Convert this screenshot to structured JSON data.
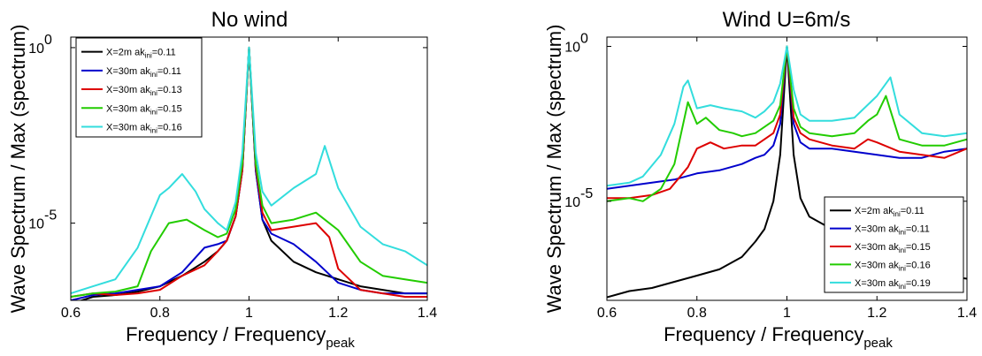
{
  "chart_data": [
    {
      "type": "line",
      "title": "No wind",
      "xlabel": "Frequency / Frequency",
      "xlabel_sub": "peak",
      "ylabel": "Wave Spectrum  / Max (spectrum)",
      "xlim": [
        0.6,
        1.4
      ],
      "ylim_log10": [
        -7.2,
        0.3
      ],
      "yscale": "log",
      "x_ticks": [
        "0.6",
        "0.8",
        "1",
        "1.2",
        "1.4"
      ],
      "y_ticks": [
        {
          "base": "10",
          "exp": "0",
          "value": 0
        },
        {
          "base": "10",
          "exp": "-5",
          "value": -5
        }
      ],
      "grid": false,
      "legend_position": "top-left",
      "legend_label_ak": "ak",
      "legend_label_sub": "ini",
      "series": [
        {
          "name_prefix": "X=2m ",
          "name_suffix": "=0.11",
          "color": "#000000",
          "x": [
            0.6,
            0.65,
            0.7,
            0.75,
            0.8,
            0.85,
            0.9,
            0.93,
            0.95,
            0.97,
            0.985,
            1.0,
            1.015,
            1.03,
            1.05,
            1.1,
            1.15,
            1.2,
            1.25,
            1.3,
            1.35,
            1.4
          ],
          "y_log10": [
            -7.3,
            -7.1,
            -7.05,
            -6.95,
            -6.8,
            -6.5,
            -6.1,
            -5.8,
            -5.5,
            -4.8,
            -3.5,
            0,
            -3.5,
            -4.9,
            -5.5,
            -6.1,
            -6.4,
            -6.6,
            -6.8,
            -6.9,
            -7.0,
            -7.0
          ]
        },
        {
          "name_prefix": "X=30m ",
          "name_suffix": "=0.11",
          "color": "#0000cc",
          "x": [
            0.6,
            0.65,
            0.7,
            0.75,
            0.8,
            0.85,
            0.9,
            0.93,
            0.95,
            0.97,
            0.985,
            1.0,
            1.015,
            1.03,
            1.05,
            1.1,
            1.15,
            1.2,
            1.25,
            1.3,
            1.35,
            1.4
          ],
          "y_log10": [
            -7.2,
            -7.05,
            -7.0,
            -6.9,
            -6.8,
            -6.4,
            -5.7,
            -5.6,
            -5.5,
            -4.8,
            -3.5,
            0,
            -3.5,
            -4.9,
            -5.3,
            -5.6,
            -6.1,
            -6.7,
            -6.9,
            -7.0,
            -7.0,
            -7.0
          ]
        },
        {
          "name_prefix": "X=30m ",
          "name_suffix": "=0.13",
          "color": "#dd0000",
          "x": [
            0.6,
            0.65,
            0.7,
            0.75,
            0.8,
            0.85,
            0.9,
            0.93,
            0.95,
            0.97,
            0.985,
            1.0,
            1.015,
            1.03,
            1.05,
            1.1,
            1.15,
            1.18,
            1.2,
            1.25,
            1.3,
            1.35,
            1.4
          ],
          "y_log10": [
            -7.1,
            -7.0,
            -7.05,
            -7.0,
            -6.9,
            -6.5,
            -6.2,
            -5.8,
            -5.5,
            -4.8,
            -3.5,
            0,
            -3.4,
            -4.7,
            -5.2,
            -5.1,
            -5.0,
            -5.4,
            -6.3,
            -6.9,
            -7.0,
            -7.1,
            -7.1
          ]
        },
        {
          "name_prefix": "X=30m ",
          "name_suffix": "=0.15",
          "color": "#22cc00",
          "x": [
            0.6,
            0.65,
            0.7,
            0.75,
            0.78,
            0.82,
            0.86,
            0.9,
            0.93,
            0.95,
            0.97,
            0.985,
            1.0,
            1.015,
            1.03,
            1.05,
            1.1,
            1.15,
            1.2,
            1.25,
            1.3,
            1.35,
            1.4
          ],
          "y_log10": [
            -7.1,
            -7.0,
            -6.95,
            -6.8,
            -5.8,
            -5.0,
            -4.9,
            -5.2,
            -5.4,
            -5.3,
            -4.6,
            -3.3,
            0,
            -3.3,
            -4.5,
            -5.0,
            -4.9,
            -4.7,
            -5.2,
            -6.1,
            -6.5,
            -6.6,
            -6.7
          ]
        },
        {
          "name_prefix": "X=30m ",
          "name_suffix": "=0.16",
          "color": "#33dddd",
          "x": [
            0.6,
            0.65,
            0.7,
            0.75,
            0.78,
            0.8,
            0.82,
            0.85,
            0.88,
            0.9,
            0.93,
            0.95,
            0.97,
            0.985,
            1.0,
            1.015,
            1.03,
            1.05,
            1.1,
            1.15,
            1.17,
            1.2,
            1.25,
            1.3,
            1.35,
            1.4
          ],
          "y_log10": [
            -7.0,
            -6.8,
            -6.6,
            -5.7,
            -4.8,
            -4.2,
            -4.0,
            -3.6,
            -4.1,
            -4.6,
            -5.0,
            -5.2,
            -4.4,
            -3.0,
            0,
            -3.0,
            -4.1,
            -4.5,
            -4.0,
            -3.6,
            -2.8,
            -4.0,
            -5.1,
            -5.6,
            -5.8,
            -6.2
          ]
        }
      ]
    },
    {
      "type": "line",
      "title": "Wind U=6m/s",
      "xlabel": "Frequency / Frequency",
      "xlabel_sub": "peak",
      "ylabel": "Wave Spectrum  / Max (spectrum)",
      "xlim": [
        0.6,
        1.4
      ],
      "ylim_log10": [
        -8.2,
        0.3
      ],
      "yscale": "log",
      "x_ticks": [
        "0.6",
        "0.8",
        "1",
        "1.2",
        "1.4"
      ],
      "y_ticks": [
        {
          "base": "10",
          "exp": "0",
          "value": 0
        },
        {
          "base": "10",
          "exp": "-5",
          "value": -5
        }
      ],
      "grid": false,
      "legend_position": "bottom-right",
      "legend_label_ak": "ak",
      "legend_label_sub": "ini",
      "series": [
        {
          "name_prefix": "X=2m ",
          "name_suffix": "=0.11",
          "color": "#000000",
          "x": [
            0.6,
            0.65,
            0.7,
            0.75,
            0.8,
            0.85,
            0.9,
            0.93,
            0.95,
            0.97,
            0.985,
            1.0,
            1.015,
            1.03,
            1.05,
            1.1,
            1.15,
            1.2,
            1.25,
            1.3,
            1.35,
            1.4
          ],
          "y_log10": [
            -8.1,
            -7.9,
            -7.8,
            -7.6,
            -7.4,
            -7.2,
            -6.8,
            -6.3,
            -5.9,
            -5.0,
            -3.5,
            0,
            -3.5,
            -4.9,
            -5.5,
            -5.9,
            -6.2,
            -6.5,
            -6.8,
            -7.1,
            -7.4,
            -7.5
          ]
        },
        {
          "name_prefix": "X=30m ",
          "name_suffix": "=0.11",
          "color": "#0000cc",
          "x": [
            0.6,
            0.65,
            0.7,
            0.75,
            0.8,
            0.85,
            0.9,
            0.93,
            0.95,
            0.97,
            0.985,
            1.0,
            1.015,
            1.03,
            1.05,
            1.1,
            1.15,
            1.2,
            1.25,
            1.3,
            1.35,
            1.4
          ],
          "y_log10": [
            -4.6,
            -4.5,
            -4.4,
            -4.3,
            -4.1,
            -4.0,
            -3.8,
            -3.6,
            -3.5,
            -3.2,
            -2.5,
            0,
            -2.5,
            -3.1,
            -3.3,
            -3.3,
            -3.4,
            -3.5,
            -3.6,
            -3.6,
            -3.4,
            -3.3
          ]
        },
        {
          "name_prefix": "X=30m ",
          "name_suffix": "=0.15",
          "color": "#dd0000",
          "x": [
            0.6,
            0.65,
            0.7,
            0.74,
            0.78,
            0.8,
            0.83,
            0.86,
            0.9,
            0.93,
            0.95,
            0.97,
            0.985,
            1.0,
            1.015,
            1.03,
            1.05,
            1.1,
            1.15,
            1.18,
            1.2,
            1.25,
            1.3,
            1.35,
            1.4
          ],
          "y_log10": [
            -4.9,
            -4.9,
            -4.8,
            -4.6,
            -3.9,
            -3.3,
            -3.1,
            -3.3,
            -3.2,
            -3.2,
            -3.0,
            -2.8,
            -2.2,
            0,
            -2.3,
            -2.8,
            -3.0,
            -3.2,
            -3.3,
            -3.0,
            -3.1,
            -3.4,
            -3.5,
            -3.6,
            -3.3
          ]
        },
        {
          "name_prefix": "X=30m ",
          "name_suffix": "=0.16",
          "color": "#22cc00",
          "x": [
            0.6,
            0.65,
            0.68,
            0.72,
            0.75,
            0.78,
            0.8,
            0.82,
            0.85,
            0.88,
            0.9,
            0.93,
            0.95,
            0.97,
            0.985,
            1.0,
            1.015,
            1.03,
            1.05,
            1.1,
            1.15,
            1.18,
            1.2,
            1.22,
            1.25,
            1.3,
            1.35,
            1.4
          ],
          "y_log10": [
            -5.0,
            -4.9,
            -5.0,
            -4.6,
            -3.8,
            -1.8,
            -2.5,
            -2.3,
            -2.7,
            -2.8,
            -2.9,
            -2.8,
            -2.6,
            -2.4,
            -1.9,
            0,
            -2.0,
            -2.6,
            -2.8,
            -2.9,
            -2.8,
            -2.4,
            -2.2,
            -1.6,
            -3.0,
            -3.2,
            -3.2,
            -3.0
          ]
        },
        {
          "name_prefix": "X=30m ",
          "name_suffix": "=0.19",
          "color": "#33dddd",
          "x": [
            0.6,
            0.65,
            0.68,
            0.72,
            0.75,
            0.77,
            0.78,
            0.8,
            0.83,
            0.86,
            0.9,
            0.93,
            0.95,
            0.97,
            0.985,
            1.0,
            1.015,
            1.03,
            1.05,
            1.1,
            1.15,
            1.2,
            1.23,
            1.25,
            1.3,
            1.35,
            1.4
          ],
          "y_log10": [
            -4.5,
            -4.4,
            -4.2,
            -3.5,
            -2.5,
            -1.3,
            -1.1,
            -2.0,
            -1.9,
            -2.0,
            -2.1,
            -2.3,
            -2.1,
            -1.8,
            -1.2,
            0,
            -1.4,
            -2.2,
            -2.4,
            -2.4,
            -2.3,
            -1.6,
            -1.0,
            -2.2,
            -2.8,
            -2.9,
            -2.8
          ]
        }
      ]
    }
  ]
}
